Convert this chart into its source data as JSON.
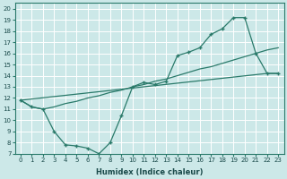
{
  "xlabel": "Humidex (Indice chaleur)",
  "xlim": [
    -0.5,
    23.5
  ],
  "ylim": [
    7,
    20.5
  ],
  "xticks": [
    0,
    1,
    2,
    3,
    4,
    5,
    6,
    7,
    8,
    9,
    10,
    11,
    12,
    13,
    14,
    15,
    16,
    17,
    18,
    19,
    20,
    21,
    22,
    23
  ],
  "yticks": [
    7,
    8,
    9,
    10,
    11,
    12,
    13,
    14,
    15,
    16,
    17,
    18,
    19,
    20
  ],
  "bg_color": "#cce8e8",
  "grid_color": "#ffffff",
  "line_color": "#2a7a6a",
  "curve1_x": [
    0,
    1,
    2,
    3,
    4,
    5,
    6,
    7,
    8,
    9,
    10,
    11,
    12,
    13,
    14,
    15,
    16,
    17,
    18,
    19,
    20,
    21,
    22,
    23
  ],
  "curve1_y": [
    11.8,
    11.2,
    11.0,
    9.0,
    7.8,
    7.7,
    7.5,
    7.0,
    8.0,
    10.4,
    13.0,
    13.4,
    13.2,
    13.5,
    15.8,
    16.1,
    16.5,
    17.7,
    18.2,
    19.2,
    19.2,
    16.0,
    14.2,
    14.2
  ],
  "curve2_x": [
    0,
    22,
    23
  ],
  "curve2_y": [
    11.8,
    14.2,
    14.2
  ],
  "curve3_x": [
    0,
    1,
    2,
    3,
    4,
    5,
    6,
    7,
    8,
    9,
    10,
    11,
    12,
    13,
    14,
    15,
    16,
    17,
    18,
    19,
    20,
    21,
    22,
    23
  ],
  "curve3_y": [
    11.8,
    11.2,
    11.0,
    11.2,
    11.5,
    11.7,
    12.0,
    12.2,
    12.5,
    12.7,
    13.0,
    13.2,
    13.5,
    13.7,
    14.0,
    14.3,
    14.6,
    14.8,
    15.1,
    15.4,
    15.7,
    16.0,
    16.3,
    16.5
  ]
}
